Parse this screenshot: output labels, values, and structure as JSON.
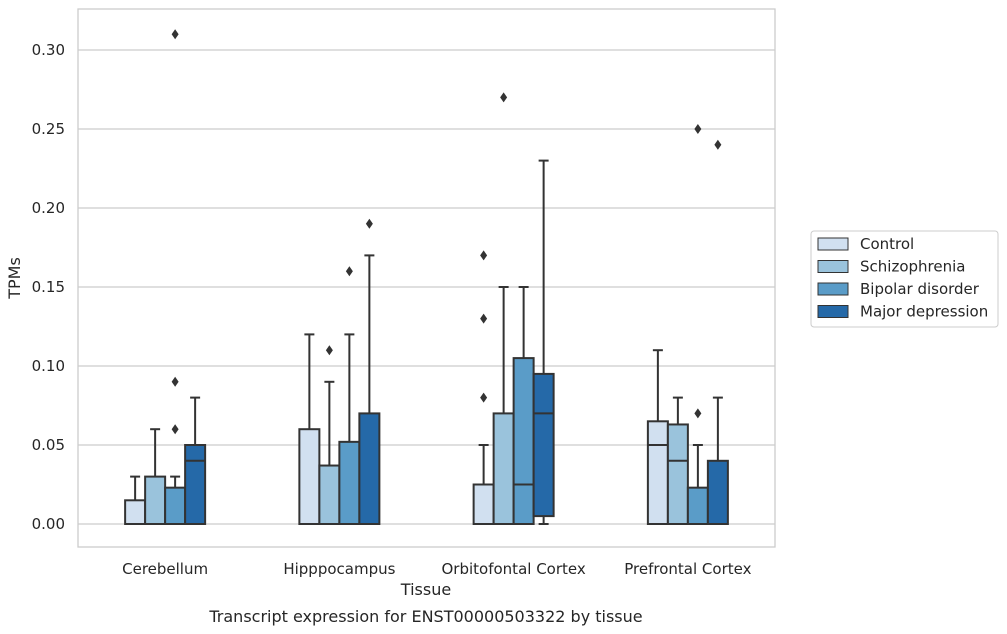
{
  "chart_data": {
    "type": "box",
    "title": "",
    "caption": "Transcript expression for ENST00000503322 by tissue",
    "xlabel": "Tissue",
    "ylabel": "TPMs",
    "ylim": [
      -0.015,
      0.325
    ],
    "yticks": [
      "0.00",
      "0.05",
      "0.10",
      "0.15",
      "0.20",
      "0.25",
      "0.30"
    ],
    "ytick_values": [
      0,
      0.05,
      0.1,
      0.15,
      0.2,
      0.25,
      0.3
    ],
    "grid": "horizontal",
    "legend_position": "right",
    "categories": [
      "Cerebellum",
      "Hipppocampus",
      "Orbitofontal Cortex",
      "Prefrontal Cortex"
    ],
    "series": [
      {
        "name": "Control",
        "color": "#d1e0f0",
        "boxes": [
          {
            "q1": 0,
            "median": 0,
            "q3": 0.015,
            "whisker_low": 0,
            "whisker_high": 0.03,
            "outliers": []
          },
          {
            "q1": 0,
            "median": 0,
            "q3": 0.06,
            "whisker_low": 0,
            "whisker_high": 0.12,
            "outliers": []
          },
          {
            "q1": 0,
            "median": 0,
            "q3": 0.025,
            "whisker_low": 0,
            "whisker_high": 0.05,
            "outliers": [
              0.08,
              0.13,
              0.17
            ]
          },
          {
            "q1": 0,
            "median": 0.05,
            "q3": 0.065,
            "whisker_low": 0,
            "whisker_high": 0.11,
            "outliers": []
          }
        ]
      },
      {
        "name": "Schizophrenia",
        "color": "#9ac3dc",
        "boxes": [
          {
            "q1": 0,
            "median": 0,
            "q3": 0.03,
            "whisker_low": 0,
            "whisker_high": 0.06,
            "outliers": []
          },
          {
            "q1": 0,
            "median": 0,
            "q3": 0.037,
            "whisker_low": 0,
            "whisker_high": 0.09,
            "outliers": [
              0.11
            ]
          },
          {
            "q1": 0,
            "median": 0,
            "q3": 0.07,
            "whisker_low": 0,
            "whisker_high": 0.15,
            "outliers": [
              0.27
            ]
          },
          {
            "q1": 0,
            "median": 0.04,
            "q3": 0.063,
            "whisker_low": 0,
            "whisker_high": 0.08,
            "outliers": []
          }
        ]
      },
      {
        "name": "Bipolar disorder",
        "color": "#5a9cc8",
        "boxes": [
          {
            "q1": 0,
            "median": 0,
            "q3": 0.023,
            "whisker_low": 0,
            "whisker_high": 0.03,
            "outliers": [
              0.06,
              0.09,
              0.31
            ]
          },
          {
            "q1": 0,
            "median": 0,
            "q3": 0.052,
            "whisker_low": 0,
            "whisker_high": 0.12,
            "outliers": [
              0.16
            ]
          },
          {
            "q1": 0,
            "median": 0.025,
            "q3": 0.105,
            "whisker_low": 0,
            "whisker_high": 0.15,
            "outliers": []
          },
          {
            "q1": 0,
            "median": 0,
            "q3": 0.023,
            "whisker_low": 0,
            "whisker_high": 0.05,
            "outliers": [
              0.07,
              0.25
            ]
          }
        ]
      },
      {
        "name": "Major depression",
        "color": "#2569a8",
        "boxes": [
          {
            "q1": 0,
            "median": 0.04,
            "q3": 0.05,
            "whisker_low": 0,
            "whisker_high": 0.08,
            "outliers": []
          },
          {
            "q1": 0,
            "median": 0,
            "q3": 0.07,
            "whisker_low": 0,
            "whisker_high": 0.17,
            "outliers": [
              0.19
            ]
          },
          {
            "q1": 0.005,
            "median": 0.07,
            "q3": 0.095,
            "whisker_low": 0,
            "whisker_high": 0.23,
            "outliers": []
          },
          {
            "q1": 0,
            "median": 0,
            "q3": 0.04,
            "whisker_low": 0,
            "whisker_high": 0.08,
            "outliers": [
              0.24
            ]
          }
        ]
      }
    ]
  }
}
